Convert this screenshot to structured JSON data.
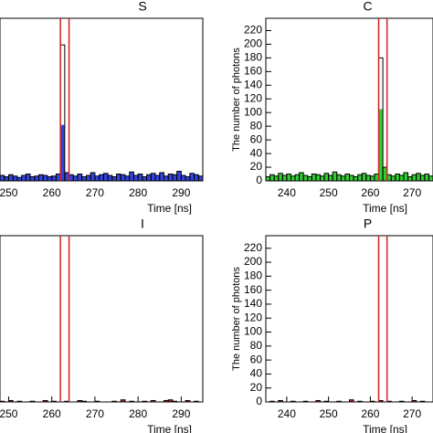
{
  "chart_data": [
    {
      "type": "histogram",
      "title": "S",
      "xlabel": "Time [ns]",
      "bins": [
        248,
        249,
        250,
        251,
        252,
        253,
        254,
        255,
        256,
        257,
        258,
        259,
        260,
        261,
        262,
        263,
        264,
        265,
        266,
        267,
        268,
        269,
        270,
        271,
        272,
        273,
        274,
        275,
        276,
        277,
        278,
        279,
        280,
        281,
        282,
        283,
        284,
        285,
        286,
        287,
        288,
        289,
        290,
        291,
        292,
        293,
        294,
        295
      ],
      "series": [
        {
          "color": "#3344dd",
          "style": "filled",
          "values": [
            8,
            6,
            9,
            7,
            5,
            8,
            10,
            6,
            7,
            9,
            8,
            6,
            7,
            10,
            82,
            12,
            9,
            7,
            10,
            6,
            8,
            12,
            7,
            9,
            11,
            8,
            6,
            10,
            9,
            7,
            13,
            8,
            10,
            6,
            9,
            11,
            8,
            12,
            7,
            10,
            9,
            14,
            8,
            6,
            11,
            9,
            7
          ]
        },
        {
          "color": "#000000",
          "style": "outline",
          "values": [
            8,
            6,
            9,
            7,
            5,
            8,
            10,
            6,
            7,
            9,
            8,
            6,
            7,
            10,
            199,
            12,
            9,
            7,
            10,
            6,
            8,
            12,
            7,
            9,
            11,
            8,
            6,
            10,
            9,
            7,
            13,
            8,
            10,
            6,
            9,
            11,
            8,
            12,
            7,
            10,
            9,
            14,
            8,
            6,
            11,
            9,
            7
          ]
        }
      ],
      "vlines": [
        262,
        264
      ],
      "vline_color": "#cc2222",
      "xlim": [
        248,
        295
      ],
      "xticks": [
        250,
        260,
        270,
        280,
        290
      ],
      "ylim": [
        0,
        238
      ]
    },
    {
      "type": "histogram",
      "title": "C",
      "xlabel": "Time [ns]",
      "ylabel": "The number of photons",
      "bins": [
        235,
        236,
        237,
        238,
        239,
        240,
        241,
        242,
        243,
        244,
        245,
        246,
        247,
        248,
        249,
        250,
        251,
        252,
        253,
        254,
        255,
        256,
        257,
        258,
        259,
        260,
        261,
        262,
        263,
        264,
        265,
        266,
        267,
        268,
        269,
        270,
        271,
        272,
        273,
        274,
        275
      ],
      "series": [
        {
          "color": "#33cc33",
          "style": "filled",
          "values": [
            6,
            9,
            7,
            11,
            8,
            10,
            7,
            9,
            12,
            8,
            6,
            10,
            9,
            7,
            11,
            8,
            13,
            9,
            7,
            10,
            8,
            6,
            9,
            11,
            8,
            7,
            10,
            105,
            20,
            9,
            7,
            10,
            8,
            12,
            6,
            9,
            11,
            8,
            10,
            7
          ]
        },
        {
          "color": "#000000",
          "style": "outline",
          "values": [
            6,
            9,
            7,
            11,
            8,
            10,
            7,
            9,
            12,
            8,
            6,
            10,
            9,
            7,
            11,
            8,
            13,
            9,
            7,
            10,
            8,
            6,
            9,
            11,
            8,
            7,
            10,
            180,
            20,
            9,
            7,
            10,
            8,
            12,
            6,
            9,
            11,
            8,
            10,
            7
          ]
        }
      ],
      "vlines": [
        262,
        264
      ],
      "vline_color": "#cc2222",
      "xlim": [
        235,
        275
      ],
      "xticks": [
        240,
        250,
        260,
        270
      ],
      "ylim": [
        0,
        238
      ],
      "yticks": [
        0,
        20,
        40,
        60,
        80,
        100,
        120,
        140,
        160,
        180,
        200,
        220
      ]
    },
    {
      "type": "histogram",
      "title": "I",
      "xlabel": "Time [ns]",
      "bins": [
        248,
        249,
        250,
        251,
        252,
        253,
        254,
        255,
        256,
        257,
        258,
        259,
        260,
        261,
        262,
        263,
        264,
        265,
        266,
        267,
        268,
        269,
        270,
        271,
        272,
        273,
        274,
        275,
        276,
        277,
        278,
        279,
        280,
        281,
        282,
        283,
        284,
        285,
        286,
        287,
        288,
        289,
        290,
        291,
        292,
        293,
        294,
        295
      ],
      "series": [
        {
          "color": "#cc2222",
          "style": "filled",
          "values": [
            1,
            0,
            2,
            0,
            1,
            0,
            0,
            1,
            0,
            0,
            2,
            0,
            1,
            0,
            0,
            1,
            0,
            0,
            2,
            1,
            0,
            0,
            1,
            0,
            0,
            0,
            1,
            0,
            3,
            0,
            1,
            0,
            0,
            1,
            0,
            2,
            0,
            0,
            2,
            3,
            1,
            0,
            0,
            2,
            0,
            1,
            0
          ]
        },
        {
          "color": "#000000",
          "style": "outline",
          "values": [
            1,
            0,
            2,
            0,
            1,
            0,
            0,
            1,
            0,
            0,
            2,
            0,
            1,
            0,
            0,
            1,
            0,
            0,
            2,
            1,
            0,
            0,
            1,
            0,
            0,
            0,
            1,
            0,
            3,
            0,
            1,
            0,
            0,
            1,
            0,
            2,
            0,
            0,
            2,
            3,
            1,
            0,
            0,
            2,
            0,
            1,
            0
          ]
        }
      ],
      "vlines": [
        262,
        264
      ],
      "vline_color": "#cc2222",
      "xlim": [
        248,
        295
      ],
      "xticks": [
        250,
        260,
        270,
        280,
        290
      ],
      "ylim": [
        0,
        238
      ]
    },
    {
      "type": "histogram",
      "title": "P",
      "xlabel": "Time [ns]",
      "ylabel": "The number of photons",
      "bins": [
        235,
        236,
        237,
        238,
        239,
        240,
        241,
        242,
        243,
        244,
        245,
        246,
        247,
        248,
        249,
        250,
        251,
        252,
        253,
        254,
        255,
        256,
        257,
        258,
        259,
        260,
        261,
        262,
        263,
        264,
        265,
        266,
        267,
        268,
        269,
        270,
        271,
        272,
        273,
        274,
        275
      ],
      "series": [
        {
          "color": "#cc2222",
          "style": "filled",
          "values": [
            0,
            1,
            0,
            2,
            0,
            0,
            1,
            0,
            0,
            1,
            0,
            0,
            2,
            0,
            1,
            0,
            0,
            1,
            0,
            0,
            3,
            0,
            1,
            0,
            0,
            1,
            0,
            2,
            0,
            1,
            0,
            0,
            1,
            0,
            0,
            2,
            0,
            1,
            0,
            0
          ]
        },
        {
          "color": "#000000",
          "style": "outline",
          "values": [
            0,
            1,
            0,
            2,
            0,
            0,
            1,
            0,
            0,
            1,
            0,
            0,
            2,
            0,
            1,
            0,
            0,
            1,
            0,
            0,
            3,
            0,
            1,
            0,
            0,
            1,
            0,
            2,
            0,
            1,
            0,
            0,
            1,
            0,
            0,
            2,
            0,
            1,
            0,
            0
          ]
        }
      ],
      "vlines": [
        262,
        264
      ],
      "vline_color": "#cc2222",
      "xlim": [
        235,
        275
      ],
      "xticks": [
        240,
        250,
        260,
        270
      ],
      "ylim": [
        0,
        238
      ],
      "yticks": [
        0,
        20,
        40,
        60,
        80,
        100,
        120,
        140,
        160,
        180,
        200,
        220
      ]
    }
  ]
}
